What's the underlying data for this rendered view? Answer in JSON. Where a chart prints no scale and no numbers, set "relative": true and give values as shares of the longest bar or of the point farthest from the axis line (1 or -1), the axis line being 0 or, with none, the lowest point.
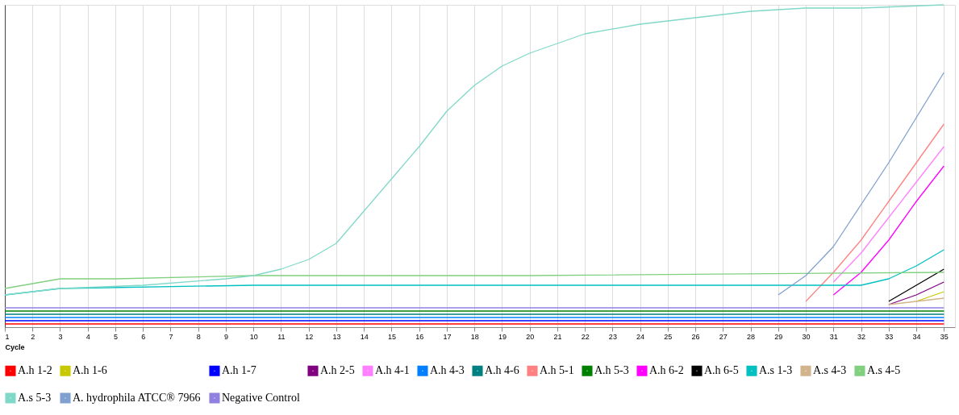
{
  "chart_data": {
    "type": "line",
    "relative": true,
    "xlabel": "Cycle",
    "xlim": [
      1,
      35.4
    ],
    "xticks": [
      1,
      2,
      3,
      4,
      5,
      6,
      7,
      8,
      9,
      10,
      11,
      12,
      13,
      14,
      15,
      16,
      17,
      18,
      19,
      20,
      21,
      22,
      23,
      24,
      25,
      26,
      27,
      28,
      29,
      30,
      31,
      32,
      33,
      34,
      35
    ],
    "grid": "x",
    "legend": "bottom",
    "marker": "none",
    "line_style": "solid",
    "series": [
      {
        "name": "A.h 1-2",
        "color": "#ff0000",
        "x": [
          1,
          35
        ],
        "values": [
          0.01,
          0.01
        ]
      },
      {
        "name": "A.h 1-6",
        "color": "#c8c800",
        "x": [
          34,
          35
        ],
        "values": [
          0.08,
          0.11
        ]
      },
      {
        "name": "A.h 1-7",
        "color": "#0000ff",
        "x": [
          1,
          35
        ],
        "values": [
          0.02,
          0.02
        ]
      },
      {
        "name": "A.h 2-5",
        "color": "#800080",
        "x": [
          33,
          34,
          35
        ],
        "values": [
          0.07,
          0.1,
          0.14
        ]
      },
      {
        "name": "A.h 4-1",
        "color": "#ff80ff",
        "x": [
          31,
          32,
          33,
          34,
          35
        ],
        "values": [
          0.14,
          0.23,
          0.34,
          0.45,
          0.56
        ]
      },
      {
        "name": "A.h 4-3",
        "color": "#0080ff",
        "x": [
          1,
          35
        ],
        "values": [
          0.03,
          0.03
        ]
      },
      {
        "name": "A.h 4-6",
        "color": "#008080",
        "x": [
          1,
          35
        ],
        "values": [
          0.04,
          0.04
        ]
      },
      {
        "name": "A.h 5-1",
        "color": "#ff8080",
        "x": [
          30,
          31,
          32,
          33,
          34,
          35
        ],
        "values": [
          0.08,
          0.17,
          0.27,
          0.39,
          0.51,
          0.63
        ]
      },
      {
        "name": "A.h 5-3",
        "color": "#008000",
        "x": [
          1,
          35
        ],
        "values": [
          0.05,
          0.05
        ]
      },
      {
        "name": "A.h 6-2",
        "color": "#ff00ff",
        "x": [
          31,
          32,
          33,
          34,
          35
        ],
        "values": [
          0.1,
          0.17,
          0.27,
          0.39,
          0.5
        ]
      },
      {
        "name": "A.h 6-5",
        "color": "#000000",
        "x": [
          33,
          34,
          35
        ],
        "values": [
          0.08,
          0.13,
          0.18
        ]
      },
      {
        "name": "A.s 1-3",
        "color": "#00c0c0",
        "x": [
          1,
          3,
          10,
          20,
          30,
          32,
          33,
          34,
          35
        ],
        "values": [
          0.1,
          0.12,
          0.13,
          0.13,
          0.13,
          0.13,
          0.15,
          0.19,
          0.24
        ]
      },
      {
        "name": "A.s 4-3",
        "color": "#d2b48c",
        "x": [
          33,
          35
        ],
        "values": [
          0.07,
          0.09
        ]
      },
      {
        "name": "A.s 4-5",
        "color": "#80d080",
        "x": [
          1,
          3,
          5,
          10,
          20,
          35
        ],
        "values": [
          0.12,
          0.15,
          0.15,
          0.16,
          0.16,
          0.17
        ]
      },
      {
        "name": "A.s 5-3",
        "color": "#80d8c8",
        "x": [
          1,
          3,
          6,
          9,
          10,
          11,
          12,
          13,
          14,
          15,
          16,
          17,
          18,
          19,
          20,
          22,
          24,
          26,
          28,
          30,
          32,
          35
        ],
        "values": [
          0.1,
          0.12,
          0.13,
          0.15,
          0.16,
          0.18,
          0.21,
          0.26,
          0.36,
          0.46,
          0.56,
          0.67,
          0.75,
          0.81,
          0.85,
          0.91,
          0.94,
          0.96,
          0.98,
          0.99,
          0.99,
          1.0
        ]
      },
      {
        "name": "A. hydrophila ATCC® 7966",
        "color": "#80a0d0",
        "x": [
          29,
          30,
          31,
          32,
          33,
          34,
          35
        ],
        "values": [
          0.1,
          0.16,
          0.25,
          0.38,
          0.51,
          0.65,
          0.79
        ]
      },
      {
        "name": "Negative Control",
        "color": "#9080e0",
        "x": [
          1,
          35
        ],
        "values": [
          0.06,
          0.06
        ]
      }
    ]
  }
}
